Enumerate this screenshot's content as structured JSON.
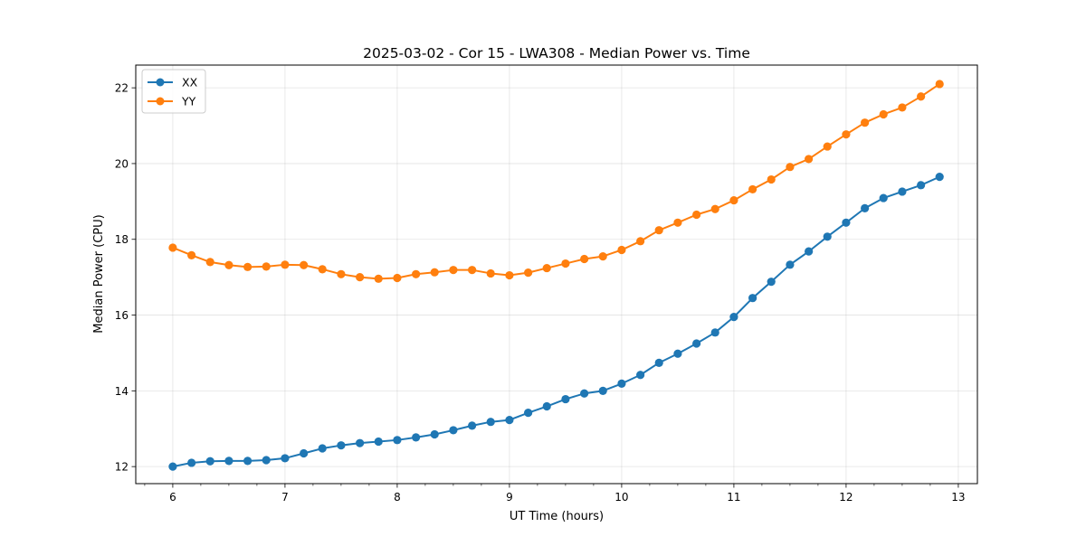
{
  "chart_data": {
    "type": "line",
    "title": "2025-03-02 - Cor 15 - LWA308 - Median Power vs. Time",
    "xlabel": "UT Time (hours)",
    "ylabel": "Median Power (CPU)",
    "xlim": [
      5.67,
      13.17
    ],
    "ylim": [
      11.55,
      22.6
    ],
    "x_ticks": [
      6,
      7,
      8,
      9,
      10,
      11,
      12,
      13
    ],
    "y_ticks": [
      12,
      14,
      16,
      18,
      20,
      22
    ],
    "x_minor_step": 0.25,
    "grid": true,
    "legend_position": "upper-left",
    "x": [
      6.0,
      6.167,
      6.333,
      6.5,
      6.667,
      6.833,
      7.0,
      7.167,
      7.333,
      7.5,
      7.667,
      7.833,
      8.0,
      8.167,
      8.333,
      8.5,
      8.667,
      8.833,
      9.0,
      9.167,
      9.333,
      9.5,
      9.667,
      9.833,
      10.0,
      10.167,
      10.333,
      10.5,
      10.667,
      10.833,
      11.0,
      11.167,
      11.333,
      11.5,
      11.667,
      11.833,
      12.0,
      12.167,
      12.333,
      12.5,
      12.667,
      12.833
    ],
    "series": [
      {
        "name": "XX",
        "color": "#1f77b4",
        "values": [
          12.0,
          12.1,
          12.14,
          12.15,
          12.15,
          12.17,
          12.22,
          12.35,
          12.48,
          12.56,
          12.62,
          12.66,
          12.7,
          12.77,
          12.85,
          12.96,
          13.08,
          13.18,
          13.23,
          13.42,
          13.59,
          13.78,
          13.93,
          14.0,
          14.19,
          14.42,
          14.74,
          14.98,
          15.25,
          15.54,
          15.95,
          16.45,
          16.88,
          17.33,
          17.68,
          18.07,
          18.44,
          18.82,
          19.09,
          19.26,
          19.43,
          19.65
        ]
      },
      {
        "name": "YY",
        "color": "#ff7f0e",
        "values": [
          17.78,
          17.58,
          17.4,
          17.32,
          17.27,
          17.28,
          17.33,
          17.32,
          17.21,
          17.08,
          17.0,
          16.96,
          16.98,
          17.08,
          17.13,
          17.19,
          17.19,
          17.1,
          17.05,
          17.12,
          17.24,
          17.36,
          17.48,
          17.55,
          17.72,
          17.95,
          18.24,
          18.44,
          18.65,
          18.8,
          19.03,
          19.32,
          19.58,
          19.91,
          20.12,
          20.45,
          20.77,
          21.08,
          21.3,
          21.48,
          21.77,
          22.1
        ]
      }
    ]
  }
}
